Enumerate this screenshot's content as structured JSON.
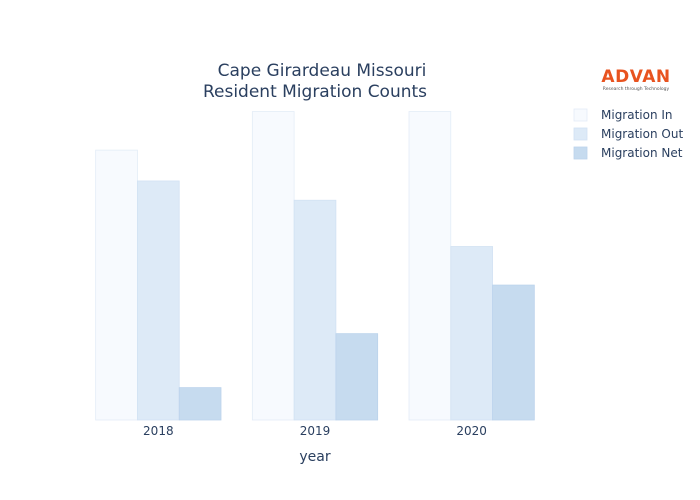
{
  "logo": {
    "name": "ADVAN",
    "tagline": "Research through Technology",
    "color": "#e8531f"
  },
  "chart_data": {
    "type": "bar",
    "title": [
      "Cape Girardeau Missouri",
      "Resident Migration Counts"
    ],
    "xlabel": "year",
    "ylabel": "",
    "categories": [
      "2018",
      "2019",
      "2020"
    ],
    "ylim": [
      0,
      4150
    ],
    "series": [
      {
        "name": "Migration In",
        "values": [
          3500,
          4000,
          4000
        ],
        "color": "#f7fafe",
        "stroke": "#e3ecf7"
      },
      {
        "name": "Migration Out",
        "values": [
          3100,
          2850,
          2250
        ],
        "color": "#ddeaf7",
        "stroke": "#d2e2f3"
      },
      {
        "name": "Migration Net",
        "values": [
          420,
          1120,
          1750
        ],
        "color": "#c6dbef",
        "stroke": "#bbd3ec"
      }
    ],
    "legend_position": "top-right",
    "grid": false
  }
}
